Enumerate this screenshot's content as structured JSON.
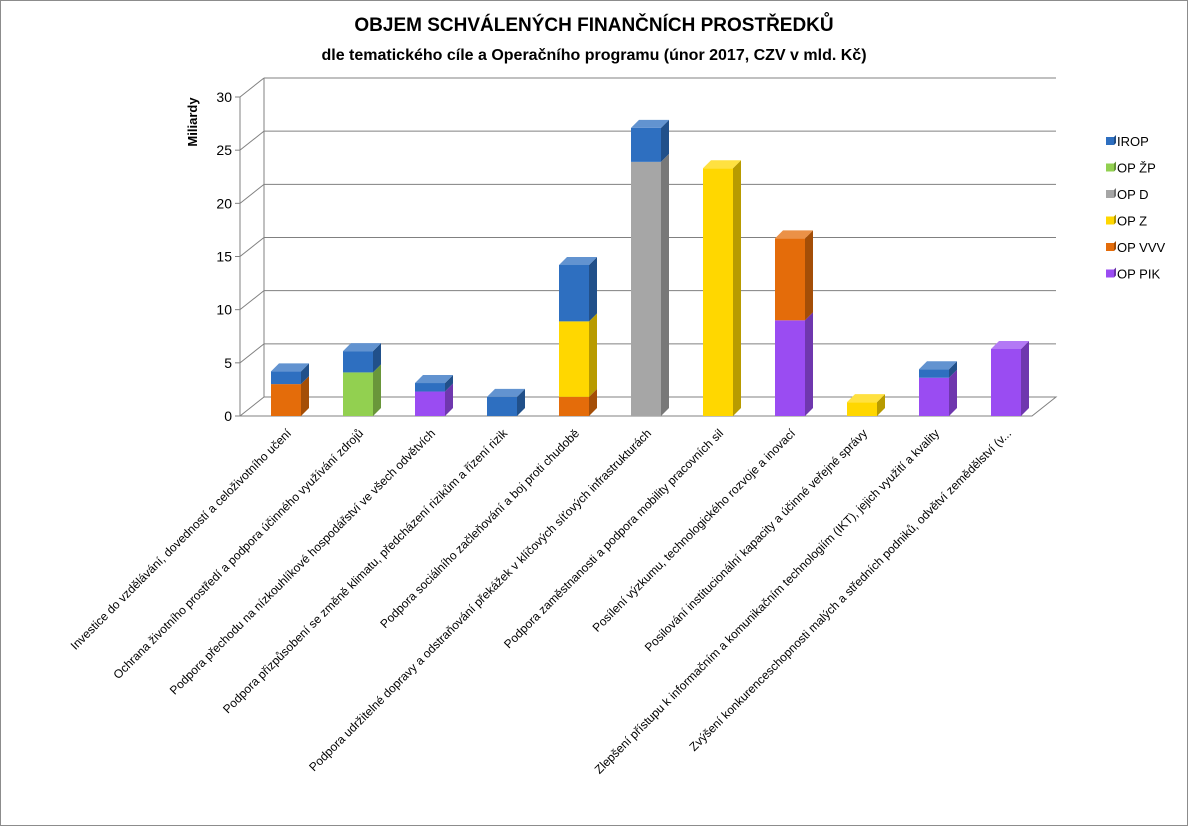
{
  "chart_data": {
    "type": "bar",
    "stacked": true,
    "three_d": true,
    "title": "OBJEM SCHVÁLENÝCH FINANČNÍCH PROSTŘEDKŮ",
    "subtitle": "dle tematického cíle a Operačního programu  (únor 2017, CZV v mld. Kč)",
    "ylabel": "Miliardy",
    "ylim": [
      0,
      30
    ],
    "yticks": [
      "0",
      "5",
      "10",
      "15",
      "20",
      "25",
      "30"
    ],
    "grid": true,
    "legend_position": "right",
    "categories": [
      "Investice do vzdělávání, dovedností a celoživotního učení",
      "Ochrana životního prostředí a podpora účinného využívání zdrojů",
      "Podpora přechodu na nízkouhlíkové hospodářství ve všech odvětvích",
      "Podpora přizpůsobení se změně klimatu, předcházení rizikům a řízení rizik",
      "Podpora sociálního začleňování a boj proti chudobě",
      "Podpora udržitelné dopravy a odstraňování překážek v klíčových síťových infrastrukturách",
      "Podpora zaměstnanosti a podpora mobility pracovních sil",
      "Posílení výzkumu, technologického rozvoje a inovací",
      "Posilování institucionální kapacity a účinné veřejné správy",
      "Zlepšení přístupu k informačním a komunikačním technologiím (IKT), jejich využití a kvality",
      "Zvýšení konkurenceschopnosti malých a středních podniků, odvětví zemědělství (v..."
    ],
    "series": [
      {
        "name": "OP PIK",
        "color": "#9a4cf2",
        "values": [
          0,
          0,
          2.3,
          0,
          0,
          0,
          0,
          9.0,
          0,
          3.6,
          6.3
        ]
      },
      {
        "name": "OP VVV",
        "color": "#e46c0a",
        "values": [
          3.0,
          0,
          0,
          0,
          1.8,
          0,
          0,
          7.7,
          0,
          0,
          0
        ]
      },
      {
        "name": "OP Z",
        "color": "#ffd700",
        "values": [
          0,
          0,
          0,
          0,
          7.1,
          0,
          23.3,
          0,
          1.3,
          0,
          0
        ]
      },
      {
        "name": "OP D",
        "color": "#a6a6a6",
        "values": [
          0,
          0,
          0,
          0,
          0,
          23.9,
          0,
          0,
          0,
          0,
          0
        ]
      },
      {
        "name": "OP ŽP",
        "color": "#92d050",
        "values": [
          0,
          4.1,
          0,
          0,
          0,
          0,
          0,
          0,
          0,
          0,
          0
        ]
      },
      {
        "name": "IROP",
        "color": "#2e6fc0",
        "values": [
          1.2,
          2.0,
          0.8,
          1.8,
          5.3,
          3.2,
          0,
          0,
          0,
          0.8,
          0
        ]
      }
    ],
    "legend": [
      "IROP",
      "OP ŽP",
      "OP D",
      "OP Z",
      "OP VVV",
      "OP PIK"
    ]
  }
}
